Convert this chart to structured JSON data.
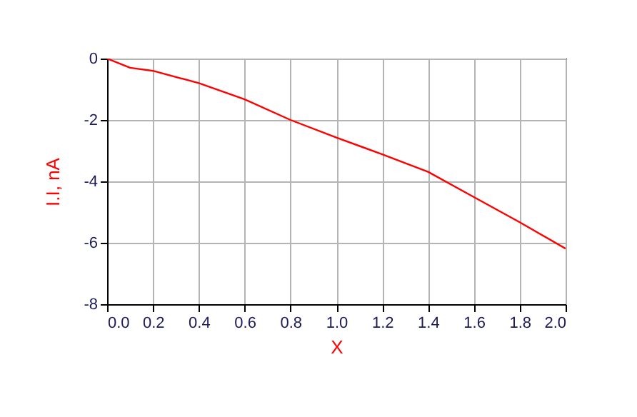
{
  "chart_data": {
    "type": "line",
    "xlabel": "X",
    "ylabel": "I.I, nA",
    "x": [
      0,
      0.1,
      0.2,
      0.4,
      0.6,
      0.8,
      1.0,
      1.2,
      1.4,
      1.6,
      1.8,
      2.0
    ],
    "series": [
      {
        "color": "#ff0000",
        "values": [
          0,
          -0.3,
          -0.4,
          -0.8,
          -1.33,
          -2.0,
          -2.57,
          -3.12,
          -3.69,
          -4.51,
          -5.33,
          -6.19
        ]
      }
    ],
    "xlim": [
      0,
      2.0
    ],
    "xticks": [
      {
        "value": 0,
        "label": "0.0"
      },
      {
        "value": 0.2,
        "label": "0.2"
      },
      {
        "value": 0.4,
        "label": "0.4"
      },
      {
        "value": 0.6,
        "label": "0.6"
      },
      {
        "value": 0.8,
        "label": "0.8"
      },
      {
        "value": 1.0,
        "label": "1.0"
      },
      {
        "value": 1.2,
        "label": "1.2"
      },
      {
        "value": 1.4,
        "label": "1.4"
      },
      {
        "value": 1.6,
        "label": "1.6"
      },
      {
        "value": 1.8,
        "label": "1.8"
      },
      {
        "value": 2.0,
        "label": "2.0"
      }
    ],
    "ylim": [
      -8,
      0
    ],
    "yticks": [
      0,
      -2,
      -4,
      -6,
      -8
    ],
    "grid": true,
    "marker": "none",
    "line_style": "solid"
  }
}
